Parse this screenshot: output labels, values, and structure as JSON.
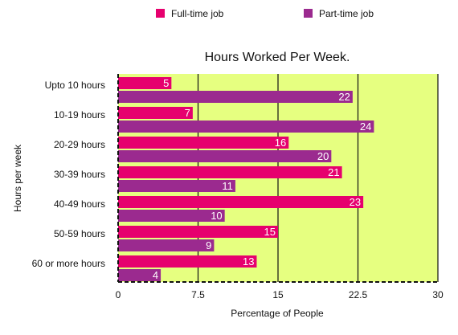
{
  "chart_data": {
    "type": "bar",
    "orientation": "horizontal",
    "title": "Hours Worked Per Week.",
    "xlabel": "Percentage of People",
    "ylabel": "Hours per week",
    "xlim": [
      0,
      30
    ],
    "xticks": [
      0,
      7.5,
      15,
      22.5,
      30
    ],
    "xtick_labels": [
      "0",
      "7.5",
      "15",
      "22.5",
      "30"
    ],
    "grid": true,
    "legend_position": "top",
    "categories": [
      "Upto 10 hours",
      "10-19 hours",
      "20-29 hours",
      "30-39 hours",
      "40-49 hours",
      "50-59 hours",
      "60 or more hours"
    ],
    "series": [
      {
        "name": "Full-time job",
        "color": "#e6006e",
        "values": [
          5,
          7,
          16,
          21,
          23,
          15,
          13
        ]
      },
      {
        "name": "Part-time job",
        "color": "#9b2a8f",
        "values": [
          22,
          24,
          20,
          11,
          10,
          9,
          4
        ]
      }
    ],
    "plot_background": "#e6ff80"
  }
}
